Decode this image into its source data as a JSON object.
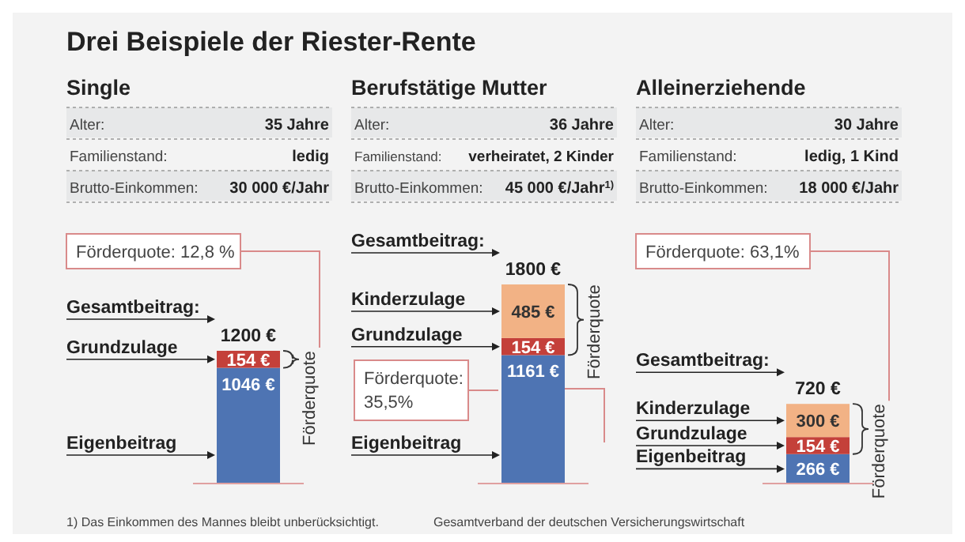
{
  "chart_data": [
    {
      "type": "bar",
      "stacked": true,
      "title": "Drei Beispiele der Riester-Rente",
      "subtitle": "Single",
      "categories": [
        null
      ],
      "totals": [
        "1200 €"
      ],
      "series": [
        {
          "name": "Eigenbeitrag",
          "color": "#4e74b3",
          "values": [
            1046
          ],
          "value_labels": [
            "1046 €"
          ]
        },
        {
          "name": "Grundzulage",
          "color": "#c4403a",
          "values": [
            154
          ],
          "value_labels": [
            "154 €"
          ]
        }
      ],
      "annotations": [
        "Alter:",
        "35 Jahre",
        "Familienstand:",
        "ledig",
        "Brutto-Einkommen:",
        "30 000 €/Jahr",
        "Gesamtbeitrag:",
        "Förderquote: 12,8 %",
        "Förderquote",
        "1) Das Einkommen des Mannes bleibt unberücksichtigt."
      ]
    },
    {
      "type": "bar",
      "stacked": true,
      "subtitle": "Berufstätige Mutter",
      "categories": [
        null
      ],
      "totals": [
        "1800 €"
      ],
      "series": [
        {
          "name": "Eigenbeitrag",
          "color": "#4e74b3",
          "values": [
            1161
          ],
          "value_labels": [
            "1161 €"
          ]
        },
        {
          "name": "Grundzulage",
          "color": "#c4403a",
          "values": [
            154
          ],
          "value_labels": [
            "154 €"
          ]
        },
        {
          "name": "Kinderzulage",
          "color": "#f2b285",
          "values": [
            485
          ],
          "value_labels": [
            "485 €"
          ]
        }
      ],
      "annotations": [
        "Alter:",
        "36 Jahre",
        "Familienstand:",
        "verheiratet, 2 Kinder",
        "Brutto-Einkommen:",
        "45 000 €/Jahr$^{1)}$",
        "Gesamtbeitrag:",
        "Förderquote: 35,5%",
        "Förderquote",
        "Gesamtverband der deutschen Versicherungswirtschaft"
      ]
    },
    {
      "type": "bar",
      "stacked": true,
      "subtitle": "Alleinerziehende",
      "categories": [
        null
      ],
      "totals": [
        "720 €"
      ],
      "series": [
        {
          "name": "Eigenbeitrag",
          "color": "#4e74b3",
          "values": [
            266
          ],
          "value_labels": [
            "266 €"
          ]
        },
        {
          "name": "Grundzulage",
          "color": "#c4403a",
          "values": [
            154
          ],
          "value_labels": [
            "154 €"
          ]
        },
        {
          "name": "Kinderzulage",
          "color": "#f2b285",
          "values": [
            300
          ],
          "value_labels": [
            "300 €"
          ]
        }
      ],
      "annotations": [
        "Alter:",
        "30 Jahre",
        "Familienstand:",
        "ledig, 1 Kind",
        "Brutto-Einkommen:",
        "18 000 €/Jahr",
        "Gesamtbeitrag:",
        "Förderquote: 63,1%",
        "Förderquote"
      ]
    }
  ]
}
